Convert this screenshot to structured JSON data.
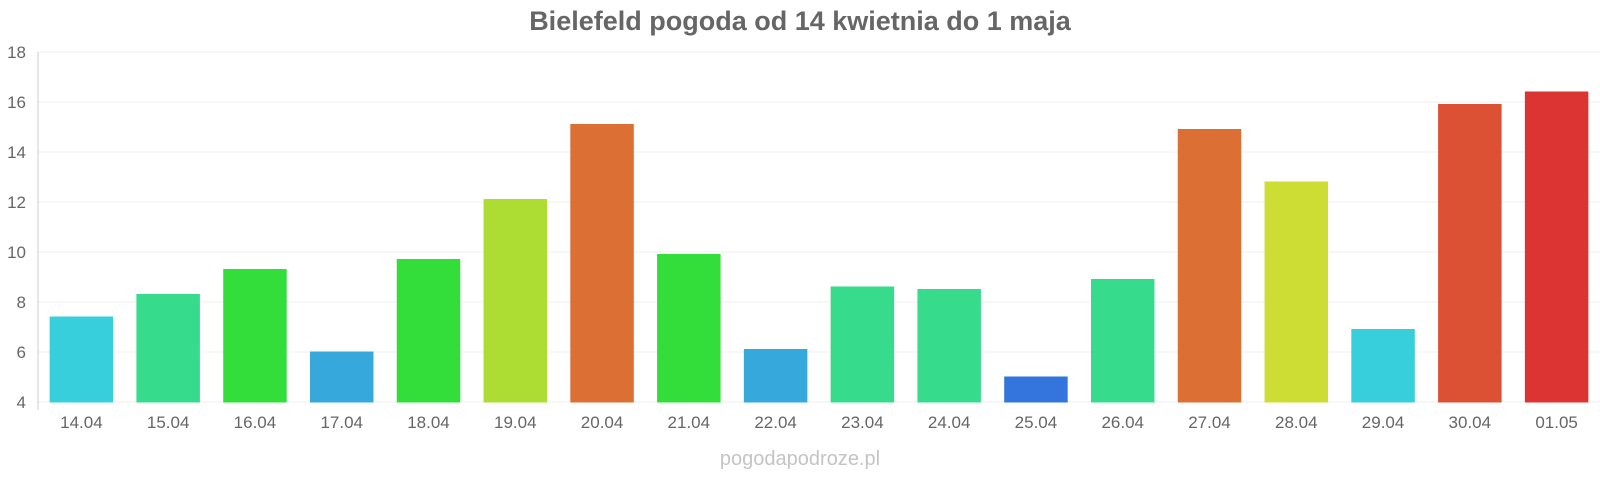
{
  "chart_data": {
    "type": "bar",
    "title": "Bielefeld pogoda od 14 kwietnia do 1 maja",
    "xlabel": "",
    "ylabel": "",
    "ylim": [
      4,
      18
    ],
    "yticks": [
      4,
      6,
      8,
      10,
      12,
      14,
      16,
      18
    ],
    "grid": true,
    "categories": [
      "14.04",
      "15.04",
      "16.04",
      "17.04",
      "18.04",
      "19.04",
      "20.04",
      "21.04",
      "22.04",
      "23.04",
      "24.04",
      "25.04",
      "26.04",
      "27.04",
      "28.04",
      "29.04",
      "30.04",
      "01.05"
    ],
    "values": [
      7.4,
      8.3,
      9.3,
      6.0,
      9.7,
      12.1,
      15.1,
      9.9,
      6.1,
      8.6,
      8.5,
      5.0,
      8.9,
      14.9,
      12.8,
      6.9,
      15.9,
      16.4
    ],
    "colors": [
      "#36cfdb",
      "#36db8c",
      "#33dd3a",
      "#36a8dc",
      "#33dd3a",
      "#addd33",
      "#dc6f33",
      "#33dd3a",
      "#36a8dc",
      "#36db8c",
      "#36db8c",
      "#3375dc",
      "#36db8c",
      "#dc6f33",
      "#cedd33",
      "#36cfdb",
      "#dc5033",
      "#dc3333"
    ]
  },
  "watermark": "pogodapodroze.pl"
}
